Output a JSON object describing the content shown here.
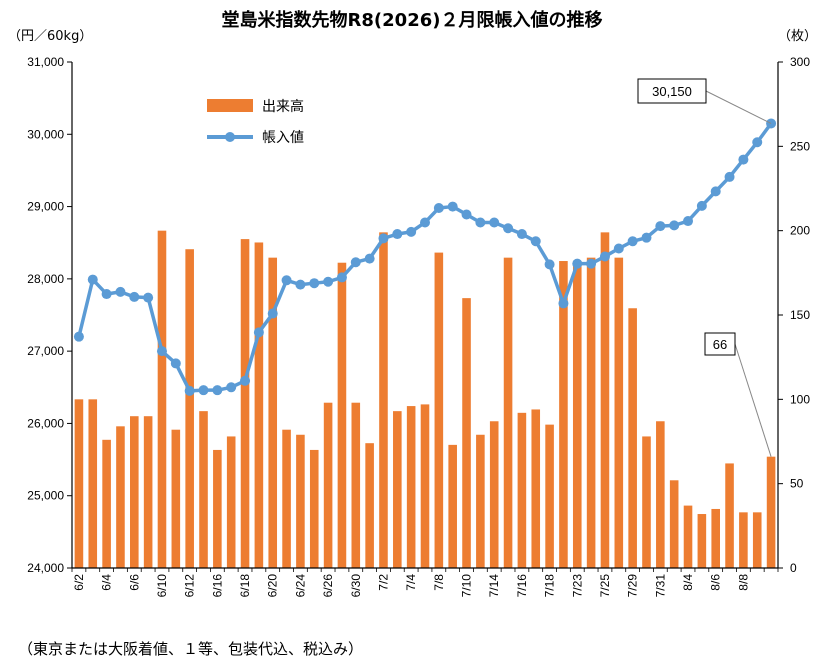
{
  "chart_data": {
    "type": "bar+line",
    "title": "堂島米指数先物R8(2026)２月限帳入値の推移",
    "left_unit": "（円／60kg）",
    "right_unit": "（枚）",
    "footnote": "（東京または大阪着値、１等、包装代込、税込み）",
    "ylim_left": [
      24000,
      31000
    ],
    "ylim_right": [
      0,
      300
    ],
    "yticks_left": [
      "24,000",
      "25,000",
      "26,000",
      "27,000",
      "28,000",
      "29,000",
      "30,000",
      "31,000"
    ],
    "yticks_right": [
      "0",
      "50",
      "100",
      "150",
      "200",
      "250",
      "300"
    ],
    "x_tick_labels": [
      "6/2",
      "6/4",
      "6/6",
      "6/10",
      "6/12",
      "6/16",
      "6/18",
      "6/20",
      "6/24",
      "6/26",
      "6/30",
      "7/2",
      "7/4",
      "7/8",
      "7/10",
      "7/14",
      "7/16",
      "7/18",
      "7/23",
      "7/25",
      "7/29",
      "7/31",
      "8/4",
      "8/6",
      "8/8"
    ],
    "series": [
      {
        "name": "出来高",
        "axis": "right",
        "color": "#ED7D31",
        "values": [
          100,
          100,
          76,
          84,
          90,
          90,
          200,
          82,
          189,
          93,
          70,
          78,
          195,
          193,
          184,
          82,
          79,
          70,
          98,
          181,
          98,
          74,
          199,
          93,
          96,
          97,
          187,
          73,
          160,
          79,
          87,
          184,
          92,
          94,
          85,
          182,
          182,
          184,
          199,
          184,
          154,
          78,
          87,
          52,
          37,
          32,
          35,
          62,
          33,
          33,
          66
        ]
      },
      {
        "name": "帳入値",
        "axis": "left",
        "color": "#5B9BD5",
        "values": [
          27200,
          27990,
          27790,
          27820,
          27750,
          27740,
          27000,
          26830,
          26450,
          26460,
          26460,
          26500,
          26590,
          27260,
          27520,
          27980,
          27920,
          27940,
          27960,
          28020,
          28230,
          28280,
          28560,
          28620,
          28650,
          28780,
          28980,
          29000,
          28890,
          28780,
          28780,
          28700,
          28620,
          28520,
          28200,
          27660,
          28210,
          28210,
          28310,
          28420,
          28520,
          28570,
          28730,
          28740,
          28800,
          29010,
          29210,
          29410,
          29650,
          29890,
          30150
        ]
      }
    ],
    "annotations": [
      {
        "text": "30,150",
        "target": "last-line-point"
      },
      {
        "text": "66",
        "target": "last-bar"
      }
    ],
    "legend": {
      "placement": "top-left-inside"
    },
    "grid": false
  }
}
